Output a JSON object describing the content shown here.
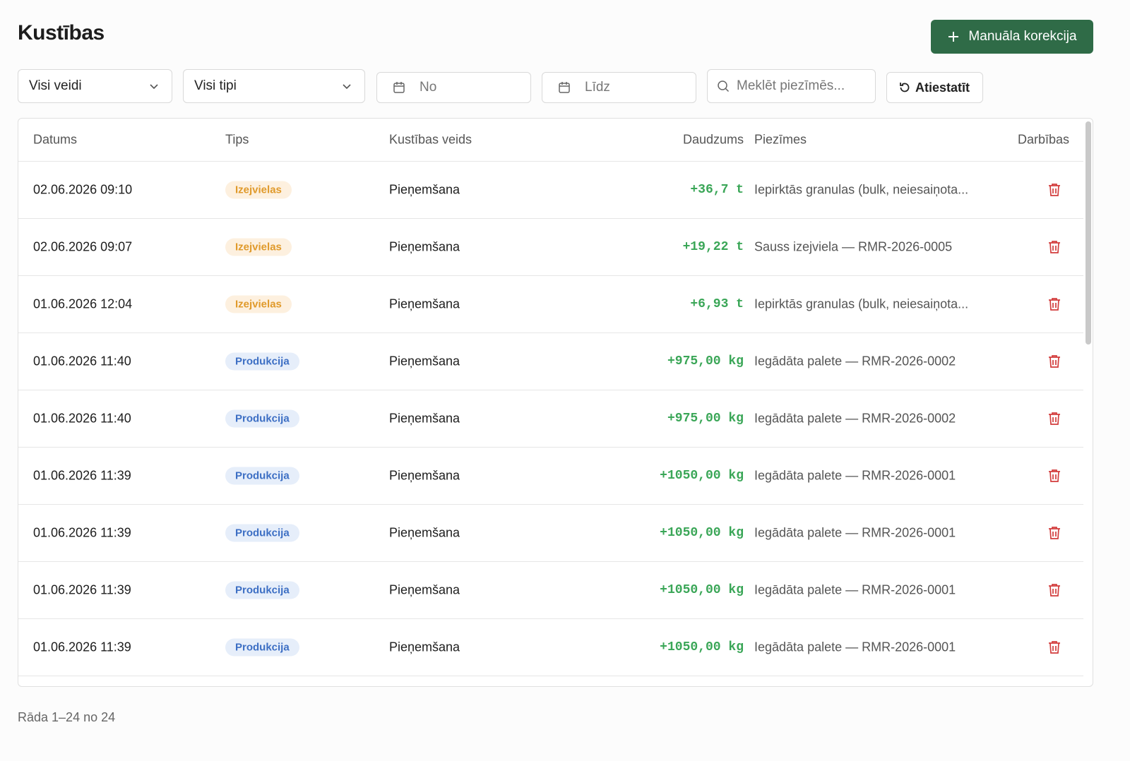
{
  "header": {
    "title": "Kustības",
    "button": "Manuāla korekcija"
  },
  "filters": {
    "kind": "Visi veidi",
    "type": "Visi tipi",
    "from": "No",
    "to": "Līdz",
    "search": "Meklēt piezīmēs...",
    "reset": "Atiestatīt"
  },
  "table": {
    "columns": [
      "Datums",
      "Tips",
      "Kustības veids",
      "Daudzums",
      "Piezīmes",
      "Darbības"
    ],
    "rows": [
      {
        "datums": "02.06.2026 09:10",
        "tips": "Izejvielas",
        "tone": "orange",
        "veids": "Pieņemšana",
        "daudzums": "+36,7 t",
        "piezimes": "Iepirktās granulas (bulk, neiesaiņota..."
      },
      {
        "datums": "02.06.2026 09:07",
        "tips": "Izejvielas",
        "tone": "orange",
        "veids": "Pieņemšana",
        "daudzums": "+19,22 t",
        "piezimes": "Sauss izejviela — RMR-2026-0005"
      },
      {
        "datums": "01.06.2026 12:04",
        "tips": "Izejvielas",
        "tone": "orange",
        "veids": "Pieņemšana",
        "daudzums": "+6,93 t",
        "piezimes": "Iepirktās granulas (bulk, neiesaiņota..."
      },
      {
        "datums": "01.06.2026 11:40",
        "tips": "Produkcija",
        "tone": "blue",
        "veids": "Pieņemšana",
        "daudzums": "+975,00 kg",
        "piezimes": "Iegādāta palete — RMR-2026-0002"
      },
      {
        "datums": "01.06.2026 11:40",
        "tips": "Produkcija",
        "tone": "blue",
        "veids": "Pieņemšana",
        "daudzums": "+975,00 kg",
        "piezimes": "Iegādāta palete — RMR-2026-0002"
      },
      {
        "datums": "01.06.2026 11:39",
        "tips": "Produkcija",
        "tone": "blue",
        "veids": "Pieņemšana",
        "daudzums": "+1050,00 kg",
        "piezimes": "Iegādāta palete — RMR-2026-0001"
      },
      {
        "datums": "01.06.2026 11:39",
        "tips": "Produkcija",
        "tone": "blue",
        "veids": "Pieņemšana",
        "daudzums": "+1050,00 kg",
        "piezimes": "Iegādāta palete — RMR-2026-0001"
      },
      {
        "datums": "01.06.2026 11:39",
        "tips": "Produkcija",
        "tone": "blue",
        "veids": "Pieņemšana",
        "daudzums": "+1050,00 kg",
        "piezimes": "Iegādāta palete — RMR-2026-0001"
      },
      {
        "datums": "01.06.2026 11:39",
        "tips": "Produkcija",
        "tone": "blue",
        "veids": "Pieņemšana",
        "daudzums": "+1050,00 kg",
        "piezimes": "Iegādāta palete — RMR-2026-0001"
      }
    ]
  },
  "footer": "Rāda 1–24 no 24"
}
